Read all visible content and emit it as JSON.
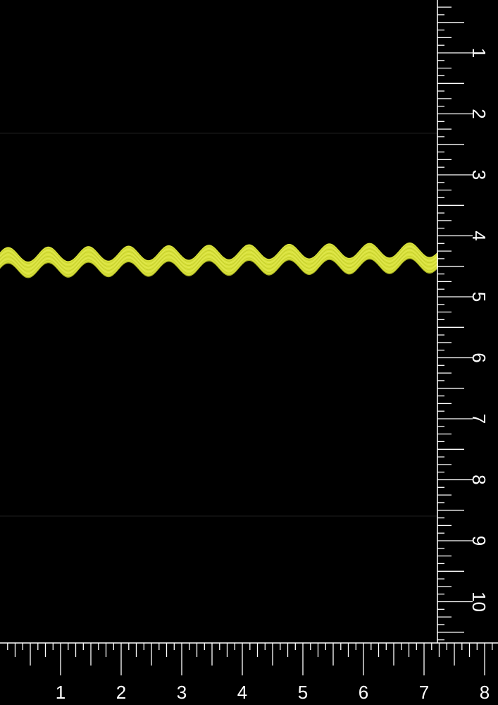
{
  "photo": {
    "subject": "ric-rac-trim",
    "colors": {
      "background": "#000000",
      "trim_main": "#d9e23a",
      "trim_shadow": "#a9b223",
      "trim_highlight": "#eef07a",
      "ruler_line": "#ffffff",
      "ruler_text": "#ffffff",
      "faint_line": "#1e1e1e"
    }
  },
  "vertical_ruler": {
    "unit": "inch",
    "labels": [
      "1",
      "2",
      "3",
      "4",
      "5",
      "6",
      "7",
      "8",
      "9",
      "10"
    ],
    "subdivisions_per_unit": 8
  },
  "horizontal_ruler": {
    "unit": "inch",
    "labels": [
      "1",
      "2",
      "3",
      "4",
      "5",
      "6",
      "7",
      "8"
    ],
    "subdivisions_per_unit": 8
  }
}
